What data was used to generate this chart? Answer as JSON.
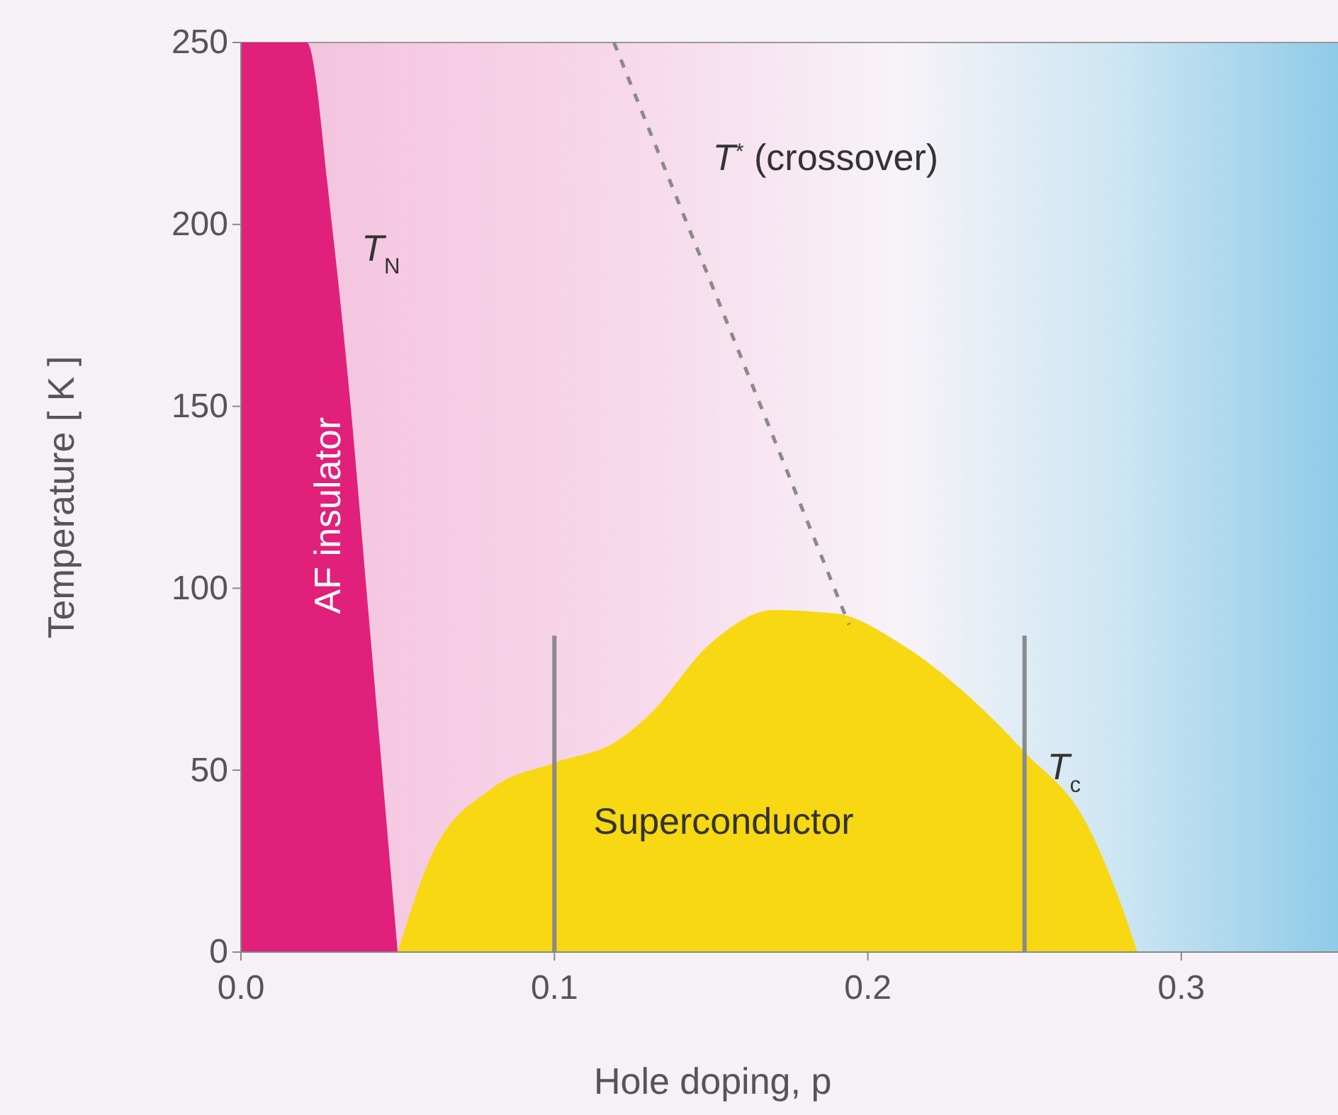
{
  "chart_data": {
    "type": "area",
    "xlabel": "Hole doping, p",
    "ylabel": "Temperature [ K ]",
    "xlim": [
      0,
      0.35
    ],
    "ylim": [
      0,
      250
    ],
    "xticks": [
      {
        "value": 0,
        "label": "0.0"
      },
      0.1,
      0.2,
      0.3
    ],
    "yticks": [
      0,
      50,
      100,
      150,
      200,
      250
    ],
    "series": [
      {
        "color": "#e0207a",
        "x": [
          0,
          0.021,
          0.029,
          0.035,
          0.04,
          0.045,
          0.05
        ],
        "values": [
          250,
          250,
          200,
          150,
          100,
          50,
          0
        ]
      },
      {
        "color": "#f7d812",
        "x": [
          0.05,
          0.06,
          0.08,
          0.1,
          0.12,
          0.13,
          0.15,
          0.17,
          0.19,
          0.21,
          0.23,
          0.25,
          0.27,
          0.28,
          0.286
        ],
        "values": [
          0,
          25,
          45,
          52,
          58,
          65,
          85,
          94,
          93,
          85,
          72,
          55,
          35,
          15,
          0
        ]
      },
      {
        "type": "line",
        "color": "#8a8a8a",
        "line_style": "dashed",
        "x": [
          0.119,
          0.194
        ],
        "values": [
          250,
          90
        ]
      },
      {
        "type": "line",
        "color": "#8a8a8a",
        "x": [
          0.1,
          0.1
        ],
        "values": [
          0,
          87
        ]
      },
      {
        "type": "line",
        "color": "#8a8a8a",
        "x": [
          0.25,
          0.25
        ],
        "values": [
          0,
          87
        ]
      }
    ],
    "annotations": [
      "AF insulator",
      "T$_{N}$",
      "T$^{*}$ (crossover)",
      "Superconductor",
      "T$_{c}$"
    ]
  }
}
